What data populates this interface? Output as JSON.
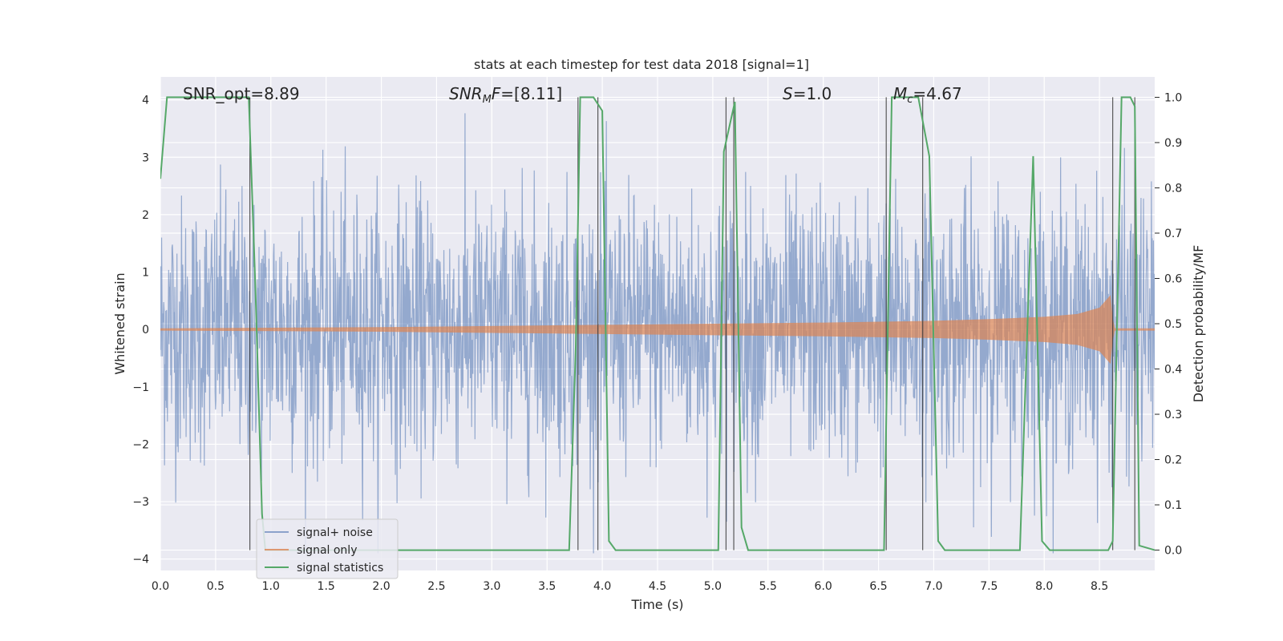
{
  "chart_data": {
    "type": "line",
    "title": "stats at each timestep for test data 2018 [signal=1]",
    "xlabel": "Time (s)",
    "ylabel": "Whitened strain",
    "ylabel_right": "Detection probability/MF",
    "xlim": [
      0.0,
      9.0
    ],
    "ylim": [
      -4.2,
      4.4
    ],
    "ylim_right": [
      -0.045,
      1.045
    ],
    "xticks": [
      "0.0",
      "0.5",
      "1.0",
      "1.5",
      "2.0",
      "2.5",
      "3.0",
      "3.5",
      "4.0",
      "4.5",
      "5.0",
      "5.5",
      "6.0",
      "6.5",
      "7.0",
      "7.5",
      "8.0",
      "8.5"
    ],
    "yticks": [
      "4",
      "3",
      "2",
      "1",
      "0",
      "−1",
      "−2",
      "−3",
      "−4"
    ],
    "yticks_right": [
      "1.0",
      "0.9",
      "0.8",
      "0.7",
      "0.6",
      "0.5",
      "0.4",
      "0.3",
      "0.2",
      "0.1",
      "0.0"
    ],
    "grid": true,
    "legend_position": "lower-left",
    "annotations": [
      {
        "id": "snr_opt",
        "text": "SNR_opt=8.89",
        "x": 0.2
      },
      {
        "id": "snr_mf",
        "text": "SNR_MF=[8.11]",
        "x": 2.6
      },
      {
        "id": "s",
        "text": "S=1.0",
        "x": 5.6
      },
      {
        "id": "mc",
        "text": "M_c=4.67",
        "x": 6.6
      }
    ],
    "series": [
      {
        "name": "signal+ noise",
        "color": "#4c72b0",
        "style": "dense noise, amplitude about ±1.5 core, peaks to about ±3.8"
      },
      {
        "name": "signal only",
        "color": "#dd8452",
        "envelope": {
          "x": [
            0.0,
            1.0,
            2.0,
            3.0,
            4.0,
            5.0,
            6.0,
            7.0,
            7.5,
            8.0,
            8.3,
            8.5,
            8.6,
            8.62,
            8.64,
            9.0
          ],
          "amplitude": [
            0.02,
            0.03,
            0.04,
            0.06,
            0.08,
            0.1,
            0.12,
            0.15,
            0.18,
            0.22,
            0.27,
            0.38,
            0.6,
            0.2,
            0.02,
            0.02
          ]
        }
      },
      {
        "name": "signal statistics",
        "color": "#55a868",
        "axis": "right",
        "x": [
          0.0,
          0.06,
          0.12,
          0.8,
          0.86,
          0.92,
          0.95,
          3.7,
          3.76,
          3.8,
          3.92,
          4.0,
          4.06,
          4.12,
          5.05,
          5.1,
          5.2,
          5.26,
          5.32,
          6.55,
          6.62,
          6.7,
          6.86,
          6.96,
          7.04,
          7.1,
          7.78,
          7.9,
          7.98,
          8.05,
          8.58,
          8.62,
          8.7,
          8.78,
          8.82,
          8.86,
          9.0
        ],
        "y": [
          0.82,
          1.0,
          1.0,
          1.0,
          0.58,
          0.08,
          0.0,
          0.0,
          0.45,
          1.0,
          1.0,
          0.97,
          0.02,
          0.0,
          0.0,
          0.88,
          0.99,
          0.05,
          0.0,
          0.0,
          1.0,
          1.0,
          1.0,
          0.87,
          0.02,
          0.0,
          0.0,
          0.87,
          0.02,
          0.0,
          0.0,
          0.02,
          1.0,
          1.0,
          0.98,
          0.01,
          0.0
        ]
      }
    ],
    "vertical_lines_x": [
      0.81,
      3.78,
      3.96,
      5.12,
      5.19,
      6.57,
      6.9,
      8.62,
      8.82
    ]
  }
}
